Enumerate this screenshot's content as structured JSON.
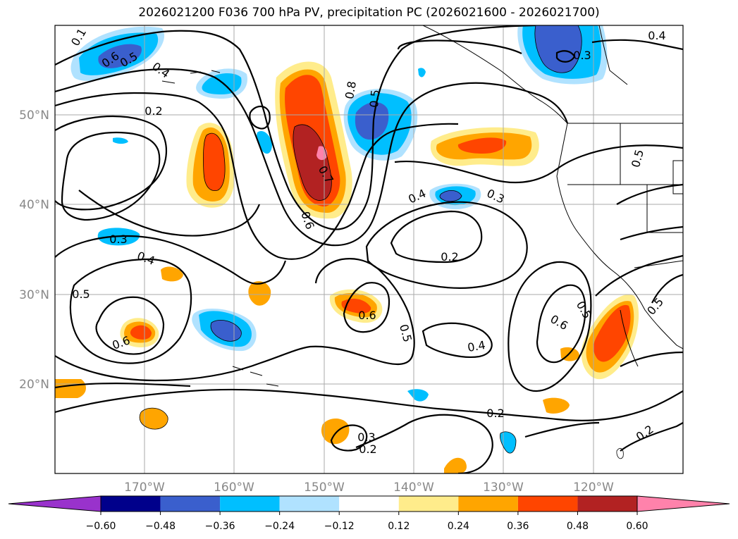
{
  "title": "2026021200 F036 700 hPa PV, precipitation PC (2026021600 - 2026021700)",
  "map": {
    "lat_labels": [
      "50°N",
      "40°N",
      "30°N",
      "20°N"
    ],
    "lon_labels": [
      "170°W",
      "160°W",
      "150°W",
      "140°W",
      "130°W",
      "120°W"
    ],
    "contour_labels": [
      "0.1",
      "0.6",
      "0.5",
      "0.4",
      "0.2",
      "0.8",
      "0.5",
      "0.7",
      "0.6",
      "0.4",
      "0.3",
      "0.2",
      "0.3",
      "0.4",
      "0.5",
      "0.6",
      "0.6",
      "0.5",
      "0.6",
      "0.5",
      "0.4",
      "0.2",
      "0.3",
      "0.2",
      "0.2",
      "0.3",
      "0.5",
      "0.4",
      "0.5"
    ]
  },
  "colorbar": {
    "ticks": [
      "−0.60",
      "−0.48",
      "−0.36",
      "−0.24",
      "−0.12",
      "0.12",
      "0.24",
      "0.36",
      "0.48",
      "0.60"
    ],
    "colors": [
      "#9932cc",
      "#00008b",
      "#3a5fcd",
      "#00bfff",
      "#b0e2ff",
      "#ffffff",
      "#ffec8b",
      "#ffa500",
      "#ff4500",
      "#b22222",
      "#ff82ab"
    ]
  }
}
